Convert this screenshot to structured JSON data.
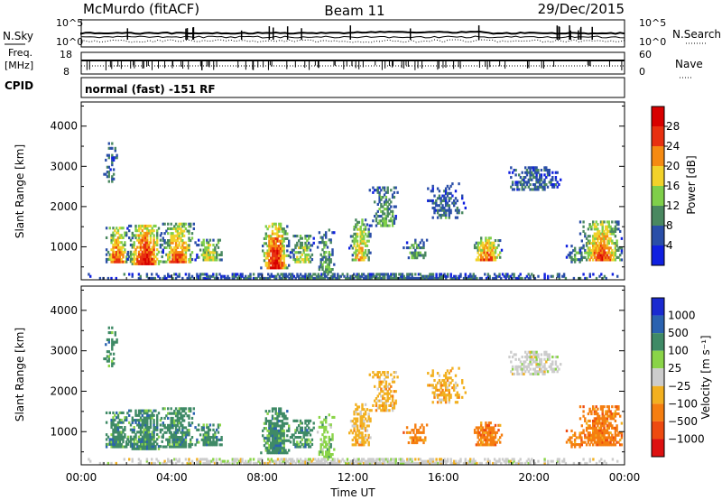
{
  "header": {
    "station": "McMurdo (fitACF)",
    "beam": "Beam 11",
    "date": "29/Dec/2015"
  },
  "strips": {
    "nsky_label": "N.Sky",
    "nsky_hi": "10^5",
    "nsky_lo": "10^0",
    "nsearch_label": "N.Search",
    "nsearch_hi": "10^5",
    "nsearch_lo": "10^0",
    "freq_label": "Freq.",
    "freq_unit": "[MHz]",
    "freq_hi": "18",
    "freq_lo": "8",
    "nave_label": "Nave",
    "nave_hi": "60",
    "nave_lo": "0",
    "cpid_label": "CPID",
    "cpid_text": "normal (fast) -151 RF"
  },
  "chart_data": [
    {
      "type": "heatmap",
      "name": "power",
      "ylabel": "Slant Range [km]",
      "xlabel": "Time UT",
      "ylim": [
        180,
        4600
      ],
      "yticks": [
        "1000",
        "2000",
        "3000",
        "4000"
      ],
      "xticks": [
        "00:00",
        "04:00",
        "08:00",
        "12:00",
        "16:00",
        "20:00",
        "00:00"
      ],
      "colorbar": {
        "label": "Power [dB]",
        "ticks": [
          "4",
          "8",
          "12",
          "16",
          "20",
          "24",
          "28"
        ],
        "colors": [
          "#1020e0",
          "#2a4ea8",
          "#4a8860",
          "#7fcf4a",
          "#f2d22a",
          "#f58a12",
          "#e83010",
          "#d80000"
        ]
      }
    },
    {
      "type": "heatmap",
      "name": "velocity",
      "ylabel": "Slant Range [km]",
      "xlabel": "Time UT",
      "ylim": [
        180,
        4600
      ],
      "yticks": [
        "1000",
        "2000",
        "3000",
        "4000"
      ],
      "xticks": [
        "00:00",
        "04:00",
        "08:00",
        "12:00",
        "16:00",
        "20:00",
        "00:00"
      ],
      "colorbar": {
        "label": "Velocity [m s⁻¹]",
        "ticks": [
          "1000",
          "500",
          "100",
          "25",
          "−25",
          "−100",
          "−500",
          "−1000"
        ],
        "colors": [
          "#1a2ad0",
          "#2a62b0",
          "#3f8a66",
          "#8ad448",
          "#cccccc",
          "#f2b020",
          "#f57e10",
          "#ee4a10",
          "#dd1010"
        ]
      }
    }
  ]
}
